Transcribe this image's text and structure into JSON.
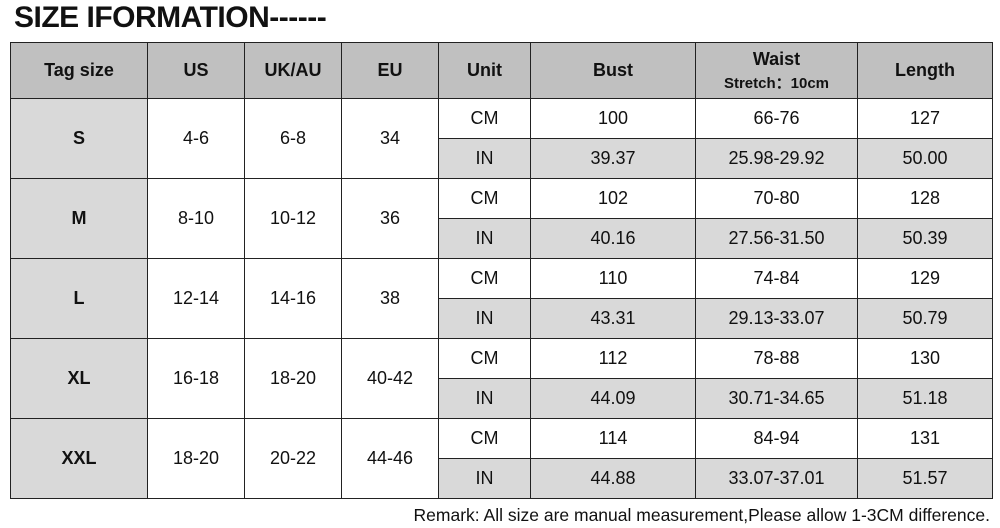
{
  "title": "SIZE IFORMATION------",
  "headers": [
    "Tag size",
    "US",
    "UK/AU",
    "EU",
    "Unit",
    "Bust",
    "Waist",
    "Length"
  ],
  "waist_note": "Stretch：10cm",
  "rows": [
    {
      "tag": "S",
      "us": "4-6",
      "uk": "6-8",
      "eu": "34",
      "cm": {
        "unit": "CM",
        "bust": "100",
        "waist": "66-76",
        "length": "127"
      },
      "in": {
        "unit": "IN",
        "bust": "39.37",
        "waist": "25.98-29.92",
        "length": "50.00"
      }
    },
    {
      "tag": "M",
      "us": "8-10",
      "uk": "10-12",
      "eu": "36",
      "cm": {
        "unit": "CM",
        "bust": "102",
        "waist": "70-80",
        "length": "128"
      },
      "in": {
        "unit": "IN",
        "bust": "40.16",
        "waist": "27.56-31.50",
        "length": "50.39"
      }
    },
    {
      "tag": "L",
      "us": "12-14",
      "uk": "14-16",
      "eu": "38",
      "cm": {
        "unit": "CM",
        "bust": "110",
        "waist": "74-84",
        "length": "129"
      },
      "in": {
        "unit": "IN",
        "bust": "43.31",
        "waist": "29.13-33.07",
        "length": "50.79"
      }
    },
    {
      "tag": "XL",
      "us": "16-18",
      "uk": "18-20",
      "eu": "40-42",
      "cm": {
        "unit": "CM",
        "bust": "112",
        "waist": "78-88",
        "length": "130"
      },
      "in": {
        "unit": "IN",
        "bust": "44.09",
        "waist": "30.71-34.65",
        "length": "51.18"
      }
    },
    {
      "tag": "XXL",
      "us": "18-20",
      "uk": "20-22",
      "eu": "44-46",
      "cm": {
        "unit": "CM",
        "bust": "114",
        "waist": "84-94",
        "length": "131"
      },
      "in": {
        "unit": "IN",
        "bust": "44.88",
        "waist": "33.07-37.01",
        "length": "51.57"
      }
    }
  ],
  "remark": "Remark: All size are manual measurement,Please allow 1-3CM difference.",
  "colors": {
    "header_bg": "#c0c0c0",
    "shaded_bg": "#d9d9d9"
  }
}
